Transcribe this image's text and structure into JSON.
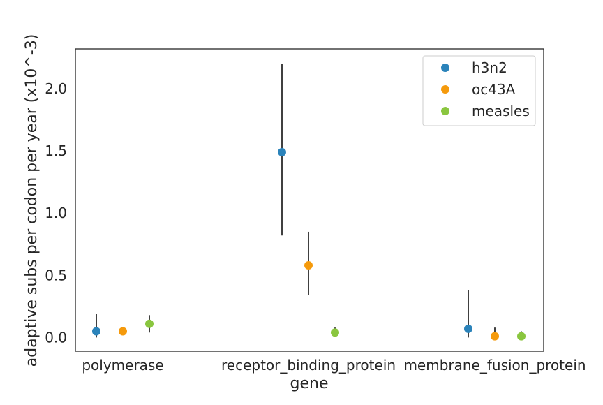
{
  "chart_data": {
    "type": "scatter",
    "title": "",
    "xlabel": "gene",
    "ylabel": "adaptive subs per codon per year (x10^-3)",
    "categories": [
      "polymerase",
      "receptor_binding_protein",
      "membrane_fusion_protein"
    ],
    "ylim": [
      -0.11,
      2.32
    ],
    "yticks": [
      0.0,
      0.5,
      1.0,
      1.5,
      2.0
    ],
    "ytick_labels": [
      "0.0",
      "0.5",
      "1.0",
      "1.5",
      "2.0"
    ],
    "grid": false,
    "legend_position": "top-right",
    "series": [
      {
        "name": "h3n2",
        "color": "#2b83ba",
        "values": [
          0.05,
          1.49,
          0.07
        ],
        "err_low": [
          0.0,
          0.82,
          0.0
        ],
        "err_high": [
          0.19,
          2.2,
          0.38
        ]
      },
      {
        "name": "oc43A",
        "color": "#f59a0c",
        "values": [
          0.05,
          0.58,
          0.01
        ],
        "err_low": [
          0.05,
          0.34,
          0.0
        ],
        "err_high": [
          0.05,
          0.85,
          0.08
        ]
      },
      {
        "name": "measles",
        "color": "#8ac63f",
        "values": [
          0.11,
          0.04,
          0.01
        ],
        "err_low": [
          0.04,
          0.03,
          0.0
        ],
        "err_high": [
          0.18,
          0.08,
          0.05
        ]
      }
    ]
  }
}
